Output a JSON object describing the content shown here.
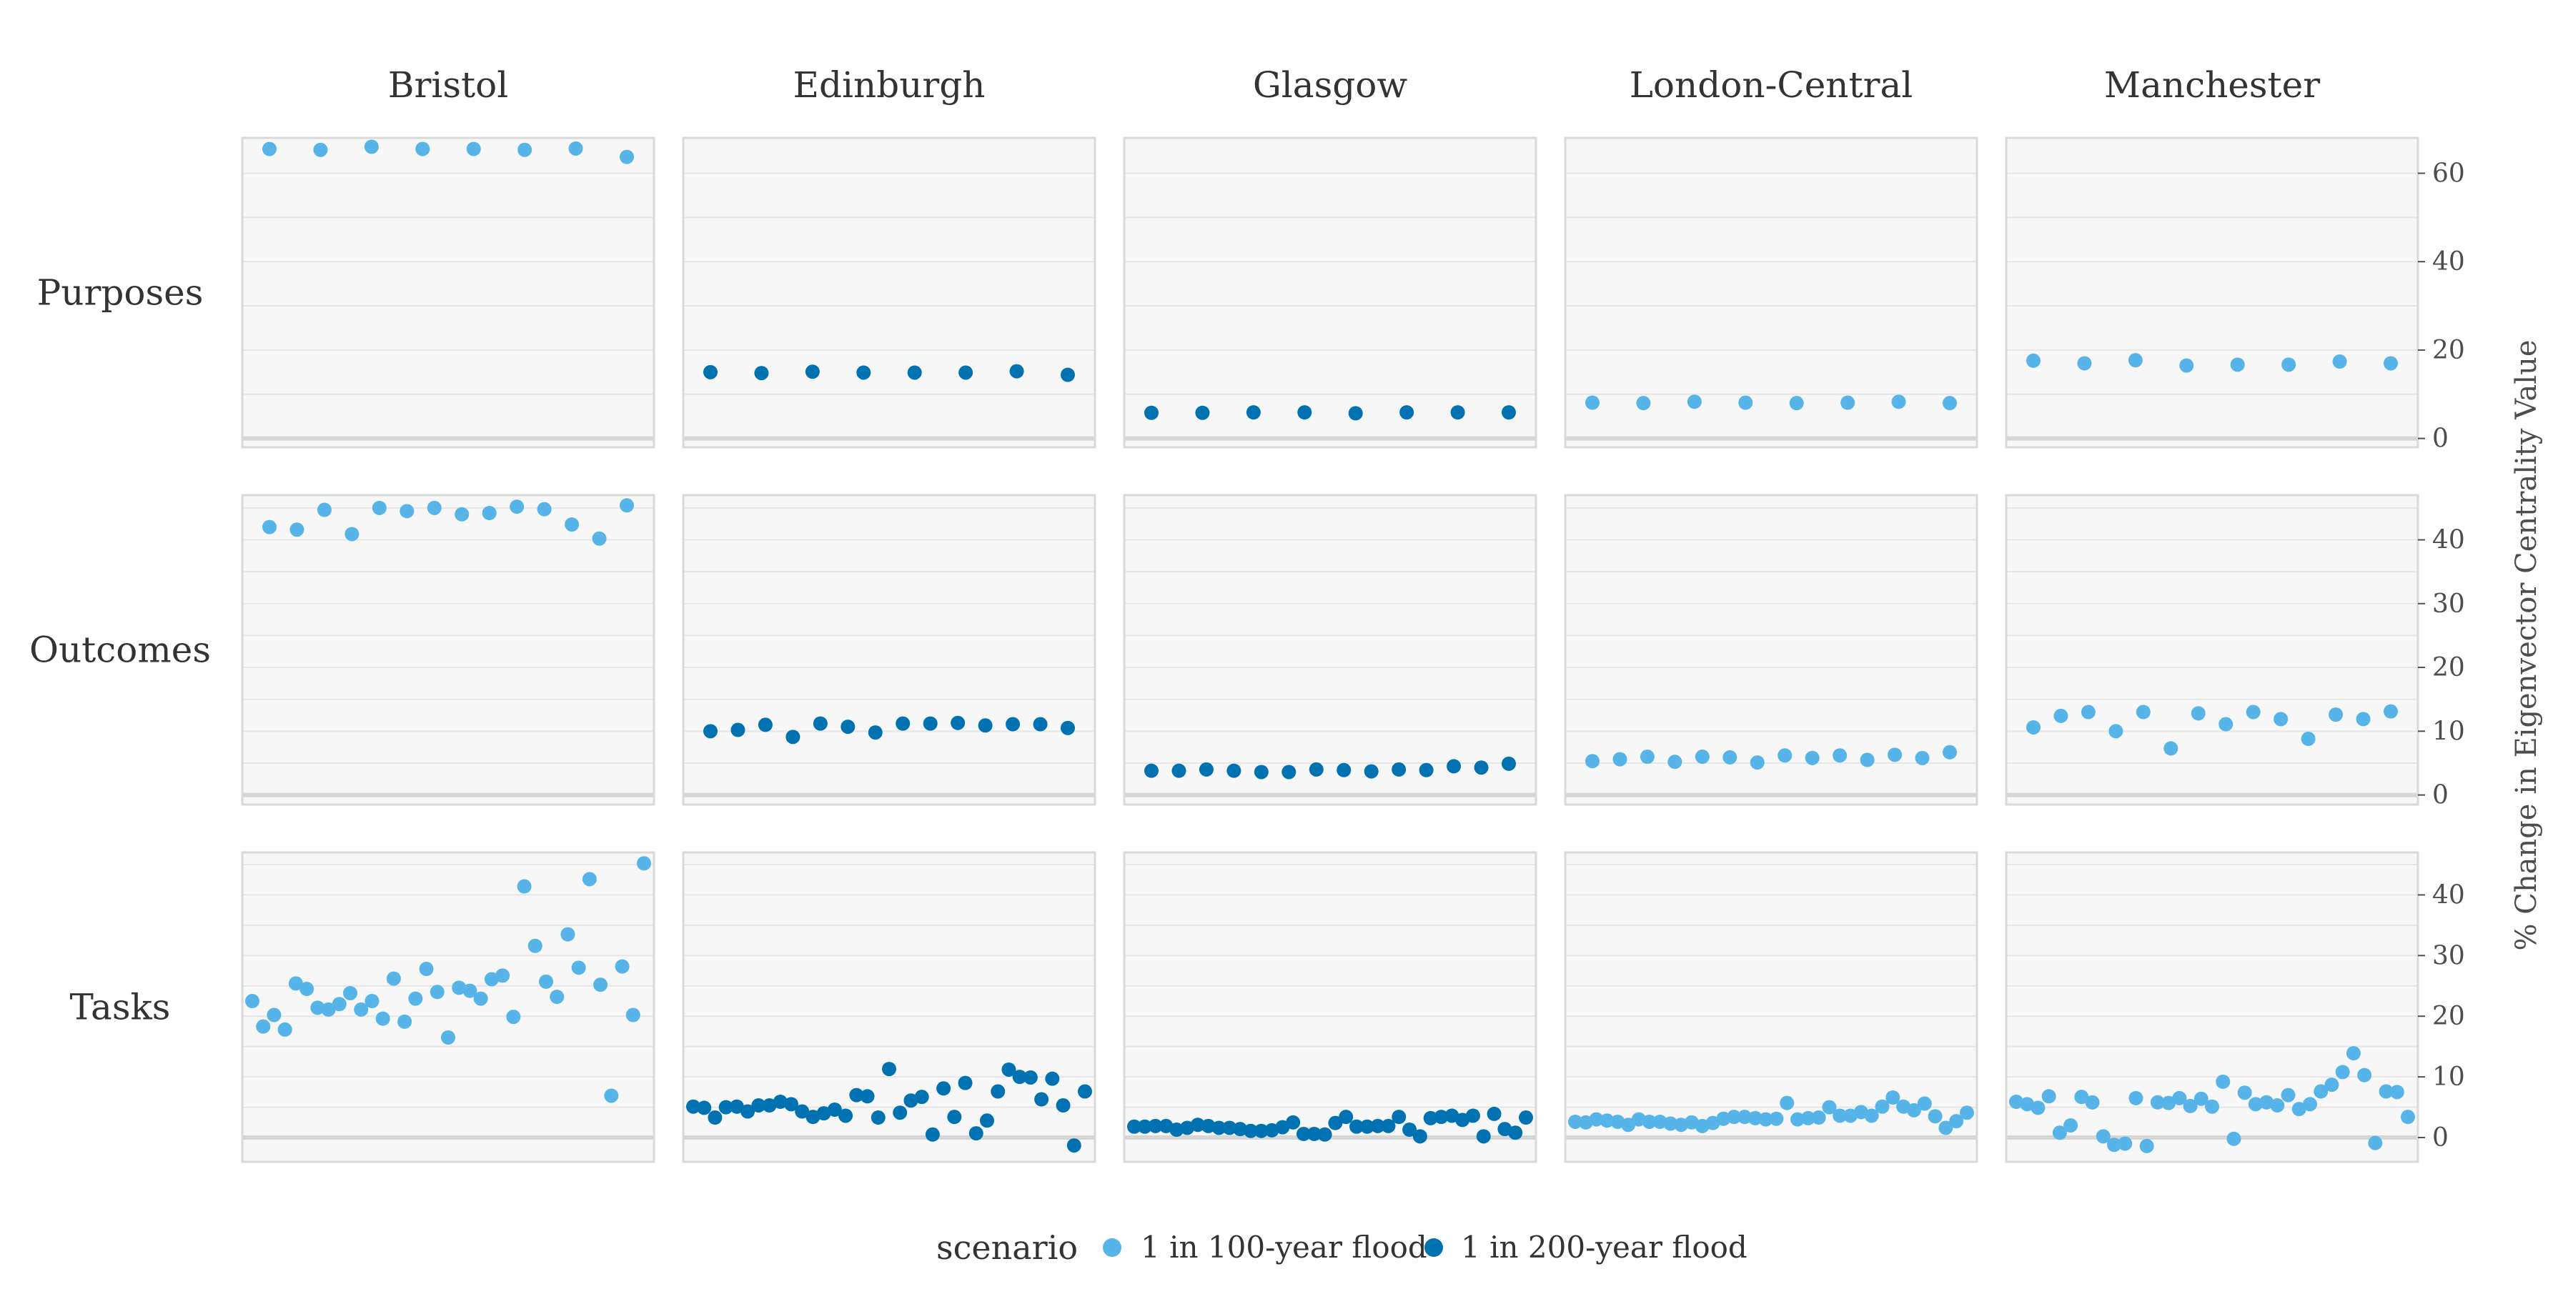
{
  "colors": {
    "1 in 100-year flood": "#56b4e9",
    "1 in 200-year flood": "#0072b2",
    "panel_bg": "#f7f7f7",
    "panel_border": "#d9d9d9",
    "grid": "#e6e6e6",
    "zero_line": "#d6d6d6"
  },
  "chart_data": {
    "type": "scatter",
    "facet_columns": [
      "Bristol",
      "Edinburgh",
      "Glasgow",
      "London-Central",
      "Manchester"
    ],
    "facet_rows": [
      "Purposes",
      "Outcomes",
      "Tasks"
    ],
    "ylabel": "% Change in Eigenvector Centrality Value",
    "y_axis_position": "right",
    "y_scales_free_per_row": true,
    "grid": true,
    "legend": {
      "title": "scenario",
      "position": "bottom",
      "entries": [
        "1 in 100-year flood",
        "1 in 200-year flood"
      ]
    },
    "rows": [
      {
        "name": "Purposes",
        "ylim": [
          -2,
          68
        ],
        "yticks": [
          0,
          20,
          40,
          60
        ],
        "panels": [
          {
            "column": "Bristol",
            "scenario": "1 in 100-year flood",
            "values": [
              65.5,
              65.3,
              66.0,
              65.5,
              65.5,
              65.3,
              65.6,
              63.7
            ]
          },
          {
            "column": "Edinburgh",
            "scenario": "1 in 200-year flood",
            "values": [
              15.0,
              14.8,
              15.1,
              14.9,
              14.9,
              14.9,
              15.2,
              14.4
            ]
          },
          {
            "column": "Glasgow",
            "scenario": "1 in 200-year flood",
            "values": [
              5.8,
              5.8,
              5.9,
              5.9,
              5.7,
              5.9,
              5.9,
              5.9
            ]
          },
          {
            "column": "London-Central",
            "scenario": "1 in 100-year flood",
            "values": [
              8.1,
              8.0,
              8.3,
              8.1,
              8.0,
              8.1,
              8.3,
              8.0
            ]
          },
          {
            "column": "Manchester",
            "scenario": "1 in 100-year flood",
            "values": [
              17.6,
              17.0,
              17.7,
              16.5,
              16.7,
              16.7,
              17.4,
              17.0
            ]
          }
        ]
      },
      {
        "name": "Outcomes",
        "ylim": [
          -1.5,
          47
        ],
        "yticks": [
          0,
          10,
          20,
          30,
          40
        ],
        "panels": [
          {
            "column": "Bristol",
            "scenario": "1 in 100-year flood",
            "values": [
              42.0,
              41.6,
              44.7,
              40.9,
              45.0,
              44.5,
              45.0,
              44.0,
              44.2,
              45.2,
              44.8,
              42.4,
              40.2,
              45.4
            ]
          },
          {
            "column": "Edinburgh",
            "scenario": "1 in 200-year flood",
            "values": [
              10.0,
              10.2,
              11.0,
              9.1,
              11.2,
              10.7,
              9.8,
              11.2,
              11.2,
              11.3,
              10.9,
              11.1,
              11.1,
              10.5
            ]
          },
          {
            "column": "Glasgow",
            "scenario": "1 in 200-year flood",
            "values": [
              3.8,
              3.8,
              4.0,
              3.8,
              3.6,
              3.6,
              4.0,
              3.9,
              3.7,
              4.0,
              3.9,
              4.5,
              4.3,
              4.9
            ]
          },
          {
            "column": "London-Central",
            "scenario": "1 in 100-year flood",
            "values": [
              5.3,
              5.6,
              6.0,
              5.2,
              6.0,
              5.9,
              5.1,
              6.2,
              5.8,
              6.2,
              5.5,
              6.3,
              5.8,
              6.7
            ]
          },
          {
            "column": "Manchester",
            "scenario": "1 in 100-year flood",
            "values": [
              10.6,
              12.4,
              13.0,
              10.0,
              13.0,
              7.3,
              12.8,
              11.1,
              13.0,
              11.9,
              8.8,
              12.6,
              11.9,
              13.1
            ]
          }
        ]
      },
      {
        "name": "Tasks",
        "ylim": [
          -4,
          47
        ],
        "yticks": [
          0,
          10,
          20,
          30,
          40
        ],
        "panels": [
          {
            "column": "Bristol",
            "scenario": "1 in 100-year flood",
            "values": [
              22.5,
              18.3,
              20.2,
              17.8,
              25.4,
              24.5,
              21.4,
              21.1,
              22.0,
              23.8,
              21.1,
              22.5,
              19.6,
              26.2,
              19.1,
              22.9,
              27.8,
              24.0,
              16.5,
              24.7,
              24.2,
              22.9,
              26.1,
              26.7,
              19.9,
              41.4,
              31.6,
              25.7,
              23.2,
              33.5,
              28.0,
              42.6,
              25.2,
              6.9,
              28.2,
              20.2,
              45.2
            ]
          },
          {
            "column": "Edinburgh",
            "scenario": "1 in 200-year flood",
            "values": [
              5.1,
              4.9,
              3.3,
              5.0,
              5.1,
              4.3,
              5.3,
              5.3,
              5.9,
              5.5,
              4.3,
              3.4,
              4.0,
              4.6,
              3.6,
              7.0,
              6.8,
              3.3,
              11.3,
              4.1,
              6.1,
              6.7,
              0.5,
              8.1,
              3.4,
              9.0,
              0.7,
              2.8,
              7.6,
              11.2,
              10.0,
              9.9,
              6.3,
              9.7,
              5.3,
              -1.3,
              7.6
            ]
          },
          {
            "column": "Glasgow",
            "scenario": "1 in 200-year flood",
            "values": [
              1.8,
              1.8,
              1.9,
              1.9,
              1.3,
              1.6,
              2.1,
              1.9,
              1.6,
              1.6,
              1.4,
              1.1,
              1.1,
              1.2,
              1.7,
              2.5,
              0.6,
              0.6,
              0.5,
              2.4,
              3.4,
              1.8,
              1.8,
              1.9,
              1.9,
              3.4,
              1.3,
              0.2,
              3.2,
              3.4,
              3.6,
              2.9,
              3.6,
              0.2,
              3.9,
              1.4,
              0.8,
              3.3
            ]
          },
          {
            "column": "London-Central",
            "scenario": "1 in 100-year flood",
            "values": [
              2.6,
              2.5,
              3.0,
              2.8,
              2.6,
              2.1,
              3.0,
              2.6,
              2.6,
              2.3,
              2.1,
              2.5,
              1.9,
              2.4,
              3.1,
              3.4,
              3.4,
              3.2,
              3.0,
              3.1,
              5.7,
              3.0,
              3.2,
              3.3,
              5.0,
              3.6,
              3.6,
              4.2,
              3.6,
              5.1,
              6.6,
              5.1,
              4.5,
              5.6,
              3.5,
              1.6,
              2.7,
              4.1
            ]
          },
          {
            "column": "Manchester",
            "scenario": "1 in 100-year flood",
            "values": [
              5.9,
              5.5,
              4.9,
              6.8,
              0.8,
              2.0,
              6.7,
              5.8,
              0.2,
              -1.2,
              -1.0,
              6.5,
              -1.4,
              5.8,
              5.7,
              6.5,
              5.2,
              6.4,
              5.1,
              9.2,
              -0.2,
              7.4,
              5.5,
              5.8,
              5.3,
              7.0,
              4.7,
              5.5,
              7.6,
              8.7,
              10.8,
              13.9,
              10.3,
              -0.9,
              7.6,
              7.5,
              3.4
            ]
          }
        ]
      }
    ]
  }
}
